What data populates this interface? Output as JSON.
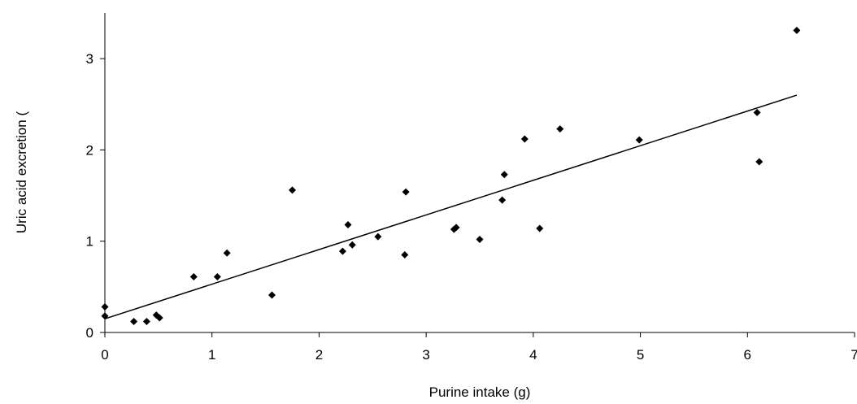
{
  "chart_data": {
    "type": "scatter",
    "xlabel": "Purine intake (g)",
    "ylabel": "Uric acid excretion (",
    "xlim": [
      0,
      7
    ],
    "xticks": [
      0,
      1,
      2,
      3,
      4,
      5,
      6,
      7
    ],
    "ylim": [
      0,
      3.5
    ],
    "yticks": [
      0,
      1,
      2,
      3
    ],
    "grid": false,
    "color": "#000000",
    "x": [
      0,
      0,
      0.27,
      0.39,
      0.48,
      0.51,
      0.83,
      1.05,
      1.14,
      1.56,
      1.75,
      2.22,
      2.27,
      2.31,
      2.55,
      2.8,
      2.81,
      3.26,
      3.28,
      3.5,
      3.71,
      3.73,
      3.92,
      4.06,
      4.25,
      4.99,
      6.09,
      6.11,
      6.46
    ],
    "y": [
      0.28,
      0.18,
      0.12,
      0.12,
      0.19,
      0.16,
      0.61,
      0.61,
      0.87,
      0.41,
      1.56,
      0.89,
      1.18,
      0.96,
      1.05,
      0.85,
      1.54,
      1.13,
      1.15,
      1.02,
      1.45,
      1.73,
      2.12,
      1.14,
      2.23,
      2.11,
      2.41,
      1.87,
      3.31
    ],
    "trendline": {
      "x": [
        0,
        6.46
      ],
      "y": [
        0.15,
        2.6
      ]
    }
  }
}
